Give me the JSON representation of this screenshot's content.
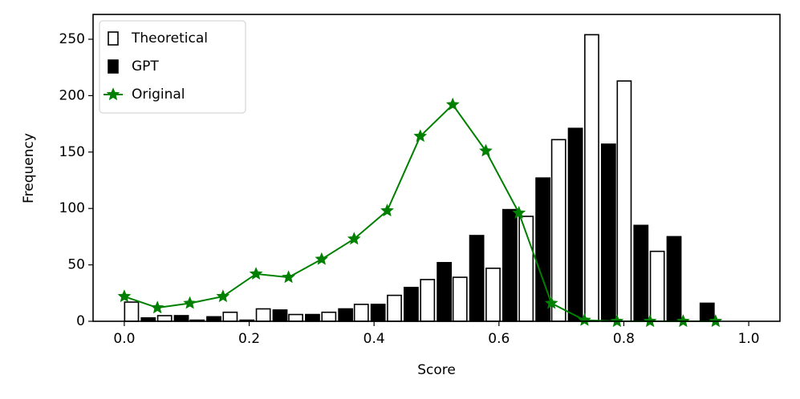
{
  "chart_data": {
    "type": "bar",
    "xlabel": "Score",
    "ylabel": "Frequency",
    "x": [
      0,
      0.053,
      0.105,
      0.158,
      0.211,
      0.263,
      0.316,
      0.368,
      0.421,
      0.474,
      0.526,
      0.579,
      0.632,
      0.684,
      0.737,
      0.789,
      0.842,
      0.895,
      0.947
    ],
    "series": [
      {
        "name": "Theoretical",
        "kind": "bar",
        "color": "#ffffff",
        "edgecolor": "#000000",
        "values": [
          17,
          5,
          1,
          8,
          11,
          6,
          8,
          15,
          23,
          37,
          39,
          47,
          93,
          161,
          254,
          213,
          62,
          0,
          0
        ]
      },
      {
        "name": "GPT",
        "kind": "bar",
        "color": "#000000",
        "edgecolor": "#000000",
        "values": [
          3,
          5,
          4,
          1,
          10,
          6,
          11,
          15,
          30,
          52,
          76,
          99,
          127,
          171,
          157,
          85,
          75,
          16,
          0
        ]
      },
      {
        "name": "Original",
        "kind": "line",
        "color": "#008000",
        "values": [
          22,
          12,
          16,
          22,
          42,
          39,
          55,
          73,
          98,
          164,
          192,
          151,
          96,
          16,
          1,
          0,
          0,
          0,
          0
        ]
      }
    ],
    "xlim": [
      -0.05,
      1.05
    ],
    "ylim": [
      0,
      272
    ],
    "xticks": [
      {
        "value": 0,
        "label": "0.0"
      },
      0.2,
      0.4,
      0.6,
      0.8,
      {
        "value": 1,
        "label": "1.0"
      }
    ],
    "yticks": [
      0,
      50,
      100,
      150,
      200,
      250
    ],
    "legend": "upper left"
  }
}
